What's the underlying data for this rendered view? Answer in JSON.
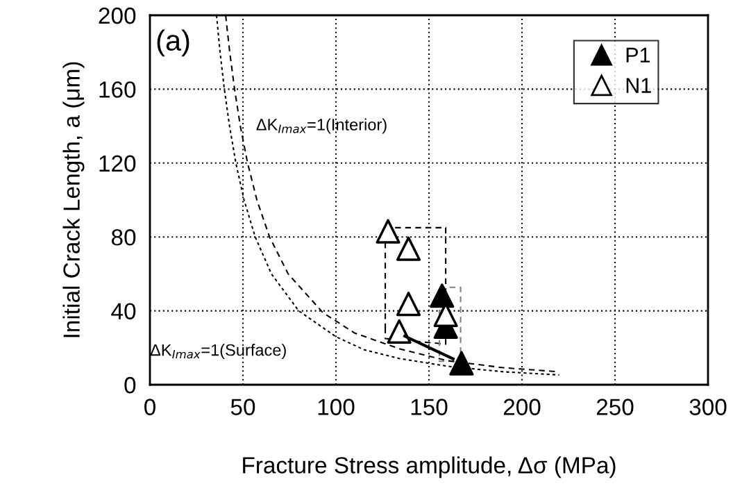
{
  "chart_data": {
    "type": "scatter",
    "xlabel": "Fracture Stress amplitude, Δσ (MPa)",
    "ylabel": "Initial Crack Length, a (μm)",
    "xlim": [
      0,
      300
    ],
    "xticks": [
      0,
      50,
      100,
      150,
      200,
      250,
      300
    ],
    "ylim": [
      0,
      200
    ],
    "yticks": [
      0,
      40,
      80,
      120,
      160,
      200
    ],
    "grid": true,
    "legend": "top right",
    "marker": "triangle",
    "annotations": [
      "(a)",
      "ΔK$_{Imax}$=1(Interior)",
      "ΔK$_{Imax}$=1(Surface)"
    ],
    "series": [
      {
        "type": "line",
        "color": "#000000",
        "line_style": "dotted",
        "marker": "none",
        "x": [
          35.8,
          37.7,
          40,
          42.8,
          46.2,
          50.6,
          56.6,
          65.3,
          80,
          100,
          115,
          134,
          160,
          190,
          220
        ],
        "values": [
          200,
          180,
          160,
          140,
          120,
          100,
          80,
          60,
          40,
          26,
          19,
          14.2,
          10,
          7,
          5.3
        ]
      },
      {
        "type": "line",
        "color": "#000000",
        "line_style": "dashed",
        "marker": "none",
        "x": [
          40.7,
          42.9,
          45.5,
          48.6,
          52.5,
          57.5,
          64.3,
          74.3,
          93,
          110,
          134,
          160,
          190,
          220
        ],
        "values": [
          200,
          180,
          160,
          140,
          120,
          100,
          80,
          60,
          39,
          28,
          19.5,
          13,
          9.2,
          7
        ]
      },
      {
        "type": "line",
        "color": "#000000",
        "line_style": "solid",
        "marker": "none",
        "x": [
          137,
          163
        ],
        "values": [
          26.3,
          14
        ]
      },
      {
        "name": "P1",
        "color": "#000000",
        "x": [
          157,
          159,
          167.5
        ],
        "values": [
          48.2,
          31.4,
          11.6
        ]
      },
      {
        "name": "N1",
        "color": "#ffffff",
        "x": [
          128,
          139,
          139,
          134,
          159
        ],
        "values": [
          83,
          73.6,
          43.7,
          28.8,
          37.8
        ]
      }
    ]
  }
}
